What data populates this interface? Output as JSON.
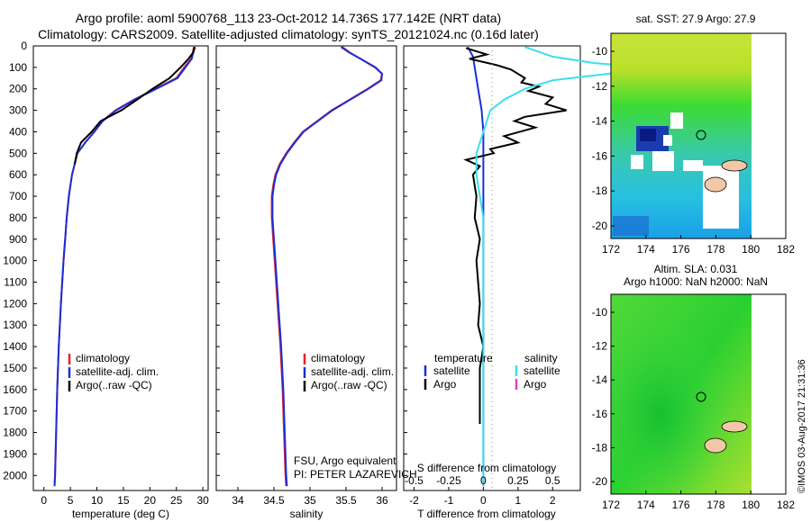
{
  "header": {
    "line1": "Argo profile: aoml 5900768_113 23-Oct-2012 14.736S 177.142E (NRT data)",
    "line2": "Climatology: CARS2009. Satellite-adjusted climatology: synTS_20121024.nc (0.16d later)"
  },
  "colors": {
    "climatology": "#e8202a",
    "satellite": "#1a2fd6",
    "argo": "#000000",
    "sat_salinity": "#38e0f0",
    "argo_salinity": "#e040c8"
  },
  "depth_ticks": [
    0,
    100,
    200,
    300,
    400,
    500,
    600,
    700,
    800,
    900,
    1000,
    1100,
    1200,
    1300,
    1400,
    1500,
    1600,
    1700,
    1800,
    1900,
    2000
  ],
  "chart_data": [
    {
      "type": "line",
      "xlabel": "temperature (deg C)",
      "xlim": [
        -2,
        31
      ],
      "ylim": [
        2070,
        0
      ],
      "xticks": [
        0,
        5,
        10,
        15,
        20,
        25,
        30
      ],
      "legend": [
        "climatology",
        "satellite-adj. clim.",
        "Argo(..raw -QC)"
      ],
      "series": [
        {
          "name": "climatology",
          "y": [
            5,
            30,
            60,
            100,
            150,
            200,
            250,
            300,
            350,
            400,
            450,
            500,
            550,
            600,
            700,
            800,
            900,
            1000,
            1200,
            1400,
            1600,
            1800,
            2000,
            2050
          ],
          "values": [
            28.3,
            28.1,
            27.8,
            26.5,
            25.0,
            21.0,
            17.0,
            13.5,
            11.0,
            9.5,
            7.8,
            6.3,
            5.8,
            5.3,
            4.7,
            4.3,
            4.0,
            3.7,
            3.2,
            2.8,
            2.5,
            2.3,
            2.1,
            2.0
          ]
        },
        {
          "name": "satellite-adj. clim.",
          "y": [
            5,
            30,
            60,
            100,
            150,
            200,
            250,
            300,
            350,
            400,
            450,
            500,
            550,
            600,
            700,
            800,
            900,
            1000,
            1200,
            1400,
            1600,
            1800,
            2000,
            2050
          ],
          "values": [
            28.4,
            28.2,
            27.9,
            26.7,
            25.2,
            21.2,
            17.1,
            13.6,
            11.1,
            9.5,
            7.8,
            6.3,
            5.8,
            5.3,
            4.7,
            4.3,
            4.0,
            3.7,
            3.2,
            2.8,
            2.5,
            2.3,
            2.1,
            2.0
          ]
        },
        {
          "name": "Argo(..raw -QC)",
          "y": [
            5,
            30,
            60,
            100,
            150,
            200,
            250,
            300,
            350,
            400,
            450,
            500,
            550
          ],
          "values": [
            28.5,
            28.2,
            27.3,
            25.8,
            23.7,
            20.5,
            17.6,
            14.6,
            10.7,
            9.0,
            7.0,
            6.2,
            5.8
          ]
        }
      ]
    },
    {
      "type": "line",
      "xlabel": "salinity",
      "xlim": [
        33.7,
        36.2
      ],
      "ylim": [
        2070,
        0
      ],
      "xticks": [
        34,
        34.5,
        35,
        35.5,
        36
      ],
      "legend": [
        "climatology",
        "satellite-adj. clim.",
        "Argo(..raw -QC)"
      ],
      "annotations": [
        "FSU, Argo equivalent",
        "PI: PETER LAZAREVICH"
      ],
      "series": [
        {
          "name": "climatology",
          "y": [
            5,
            30,
            60,
            100,
            130,
            160,
            200,
            250,
            300,
            350,
            400,
            450,
            500,
            550,
            600,
            650,
            700,
            800,
            900,
            1000,
            1200,
            1400,
            1600,
            1800,
            2000,
            2050
          ],
          "values": [
            35.45,
            35.55,
            35.7,
            35.9,
            36.0,
            35.98,
            35.8,
            35.55,
            35.3,
            35.1,
            34.9,
            34.78,
            34.67,
            34.58,
            34.52,
            34.49,
            34.47,
            34.47,
            34.49,
            34.51,
            34.55,
            34.59,
            34.62,
            34.64,
            34.66,
            34.67
          ]
        },
        {
          "name": "satellite-adj. clim.",
          "y": [
            5,
            30,
            60,
            100,
            130,
            160,
            200,
            250,
            300,
            350,
            400,
            450,
            500,
            550,
            600,
            650,
            700,
            800,
            900,
            1000,
            1200,
            1400,
            1600,
            1800,
            2000,
            2050
          ],
          "values": [
            35.43,
            35.54,
            35.7,
            35.91,
            36.0,
            35.99,
            35.81,
            35.56,
            35.31,
            35.11,
            34.91,
            34.79,
            34.68,
            34.59,
            34.53,
            34.5,
            34.48,
            34.48,
            34.5,
            34.52,
            34.56,
            34.6,
            34.63,
            34.65,
            34.67,
            34.68
          ]
        }
      ]
    },
    {
      "type": "line",
      "xlabel": "T difference from climatology",
      "xlabel2": "S difference from climatology",
      "xlim": [
        -2.3,
        2.8
      ],
      "ylim": [
        2070,
        0
      ],
      "xticks": [
        -2,
        -1,
        0,
        1,
        2
      ],
      "xticks2": [
        "-0.5",
        "-0.25",
        "0",
        "0.25",
        "0.5"
      ],
      "legend_titles": [
        "temperature",
        "salinity"
      ],
      "legend": [
        "satellite",
        "Argo",
        "satellite",
        "Argo"
      ],
      "series": [
        {
          "name": "satellite",
          "group": "temperature",
          "y": [
            5,
            50,
            100,
            150,
            200,
            300,
            400,
            500,
            600,
            800,
            1000,
            1500,
            2000,
            2050
          ],
          "values": [
            -0.45,
            -0.3,
            -0.25,
            -0.2,
            -0.15,
            -0.05,
            0.0,
            0.0,
            0.0,
            0.0,
            0.0,
            0.0,
            0.0,
            0.0
          ]
        },
        {
          "name": "Argo",
          "group": "temperature",
          "y": [
            10,
            40,
            60,
            90,
            110,
            130,
            150,
            170,
            190,
            210,
            240,
            270,
            300,
            330,
            350,
            380,
            420,
            450,
            480,
            500,
            530,
            560,
            600,
            700,
            800,
            900,
            1000,
            1100,
            1200,
            1300,
            1400,
            1500,
            1600,
            1700,
            1760
          ],
          "values": [
            -0.5,
            0.1,
            -0.4,
            0.4,
            0.8,
            1.0,
            1.2,
            1.1,
            1.6,
            1.3,
            2.0,
            1.8,
            2.4,
            1.2,
            0.9,
            1.5,
            0.6,
            1.0,
            0.2,
            0.3,
            -0.5,
            -0.1,
            -0.3,
            -0.2,
            -0.25,
            -0.1,
            -0.2,
            -0.15,
            -0.1,
            -0.15,
            0.0,
            -0.1,
            -0.1,
            -0.1,
            -0.1
          ]
        },
        {
          "name": "satellite",
          "group": "salinity",
          "y": [
            5,
            50,
            80,
            100,
            130,
            160,
            200,
            250,
            300,
            400,
            500,
            600,
            800,
            1000,
            1500,
            2000,
            2050
          ],
          "values": [
            0.3,
            0.5,
            0.8,
            1.2,
            0.9,
            0.5,
            0.3,
            0.15,
            0.05,
            0.0,
            -0.05,
            -0.05,
            0.0,
            0.0,
            0.0,
            0.0,
            0.0
          ]
        }
      ]
    }
  ],
  "maps": [
    {
      "title": "sat. SST: 27.9 Argo: 27.9",
      "xticks": [
        "172",
        "174",
        "176",
        "178",
        "180",
        "182"
      ],
      "yticks": [
        "-10",
        "-12",
        "-14",
        "-16",
        "-18",
        "-20"
      ]
    },
    {
      "title": "Altim. SLA: 0.031",
      "subtitle": "Argo h1000: NaN h2000: NaN",
      "xticks": [
        "172",
        "174",
        "176",
        "178",
        "180",
        "182"
      ],
      "yticks": [
        "-10",
        "-12",
        "-14",
        "-16",
        "-18",
        "-20"
      ]
    }
  ],
  "footer": {
    "stamp": "©IMOS 03-Aug-2017 21:31:36"
  }
}
